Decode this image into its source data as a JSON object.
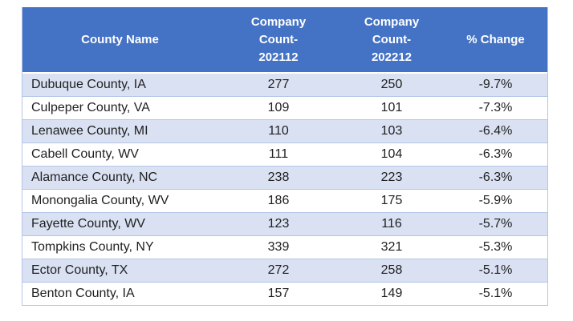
{
  "table": {
    "columns": [
      {
        "id": "county-name",
        "label": "County Name"
      },
      {
        "id": "company-count-202112",
        "lines": [
          "Company",
          "Count-",
          "202112"
        ]
      },
      {
        "id": "company-count-202212",
        "lines": [
          "Company",
          "Count-",
          "202212"
        ]
      },
      {
        "id": "pct-change",
        "label": "% Change"
      }
    ],
    "rows": [
      [
        "Dubuque County, IA",
        "277",
        "250",
        "-9.7%"
      ],
      [
        "Culpeper County, VA",
        "109",
        "101",
        "-7.3%"
      ],
      [
        "Lenawee County, MI",
        "110",
        "103",
        "-6.4%"
      ],
      [
        "Cabell County, WV",
        "111",
        "104",
        "-6.3%"
      ],
      [
        "Alamance County, NC",
        "238",
        "223",
        "-6.3%"
      ],
      [
        "Monongalia County, WV",
        "186",
        "175",
        "-5.9%"
      ],
      [
        "Fayette County, WV",
        "123",
        "116",
        "-5.7%"
      ],
      [
        "Tompkins County, NY",
        "339",
        "321",
        "-5.3%"
      ],
      [
        "Ector County, TX",
        "272",
        "258",
        "-5.1%"
      ],
      [
        "Benton County, IA",
        "157",
        "149",
        "-5.1%"
      ]
    ]
  },
  "colors": {
    "header_bg": "#4472C4",
    "header_text": "#FFFFFF",
    "row_band": "#D9E1F2",
    "row_plain": "#FFFFFF",
    "border": "#B4C6E7",
    "body_text": "#1F1F1F"
  }
}
